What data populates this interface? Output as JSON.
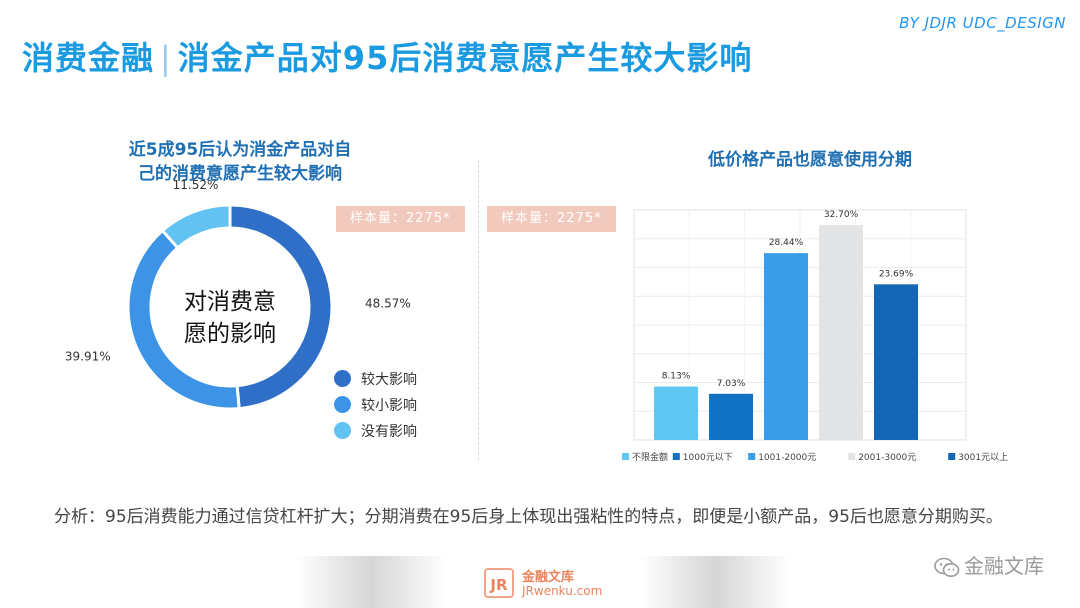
{
  "header": {
    "title_left": "消费金融",
    "title_sep": "|",
    "title_right": "消金产品对95后消费意愿产生较大影响",
    "brand": "BY JDJR UDC_DESIGN"
  },
  "left_panel": {
    "subtitle_line1": "近5成95后认为消金产品对自",
    "subtitle_line2": "己的消费意愿产生较大影响",
    "sample_tag": "样本量：2275*",
    "center_line1": "对消费意",
    "center_line2": "愿的影响"
  },
  "right_panel": {
    "subtitle": "低价格产品也愿意使用分期",
    "sample_tag": "样本量：2275*"
  },
  "colors": {
    "accent": "#1a9ae0",
    "donut_large": "#2f6fc7",
    "donut_small": "#3d94e6",
    "donut_none": "#62c2f2",
    "bar_1": "#5ec8f2",
    "bar_2": "#1172c4",
    "bar_3": "#3b9ce8",
    "bar_4": "#e2e4e6",
    "bar_5": "#1565b5"
  },
  "chart_data": [
    {
      "type": "pie",
      "title": "近5成95后认为消金产品对自己的消费意愿产生较大影响",
      "categories": [
        "较大影响",
        "较小影响",
        "没有影响"
      ],
      "values": [
        48.57,
        39.91,
        11.52
      ],
      "value_labels": [
        "48.57%",
        "39.91%",
        "11.52%"
      ],
      "legend_position": "bottom-right"
    },
    {
      "type": "bar",
      "title": "低价格产品也愿意使用分期",
      "categories": [
        "不限金额",
        "1000元以下",
        "1001-2000元",
        "2001-3000元",
        "3001元以上"
      ],
      "values": [
        8.13,
        7.03,
        28.44,
        32.7,
        23.69
      ],
      "value_labels": [
        "8.13%",
        "7.03%",
        "28.44%",
        "32.70%",
        "23.69%"
      ],
      "ylim": [
        0,
        35
      ],
      "grid": true,
      "legend_position": "bottom"
    }
  ],
  "analysis": {
    "text": "分析：95后消费能力通过信贷杠杆扩大；分期消费在95后身上体现出强粘性的特点，即便是小额产品，95后也愿意分期购买。"
  },
  "footer": {
    "jr_logo": "JR",
    "jr_cn": "金融文库",
    "jr_en": "JRwenku.com",
    "wechat": "金融文库"
  }
}
